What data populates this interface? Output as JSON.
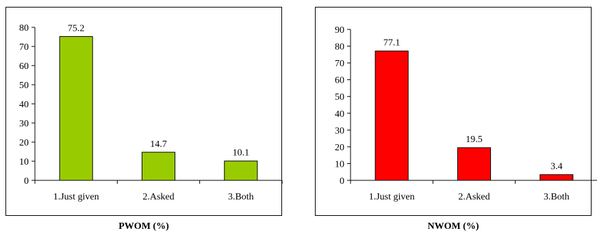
{
  "chart_data": [
    {
      "type": "bar",
      "title": "PWOM (%)",
      "categories": [
        "1.Just given",
        "2.Asked",
        "3.Both"
      ],
      "values": [
        75.2,
        14.7,
        10.1
      ],
      "ylim": [
        0,
        80
      ],
      "ytick_step": 10,
      "grid": false,
      "bar_color": "#99cc00",
      "data_labels": [
        "75.2",
        "14.7",
        "10.1"
      ]
    },
    {
      "type": "bar",
      "title": "NWOM (%)",
      "categories": [
        "1.Just given",
        "2.Asked",
        "3.Both"
      ],
      "values": [
        77.1,
        19.5,
        3.4
      ],
      "ylim": [
        0,
        90
      ],
      "ytick_step": 10,
      "grid": false,
      "bar_color": "#ff0000",
      "data_labels": [
        "77.1",
        "19.5",
        "3.4"
      ]
    }
  ]
}
